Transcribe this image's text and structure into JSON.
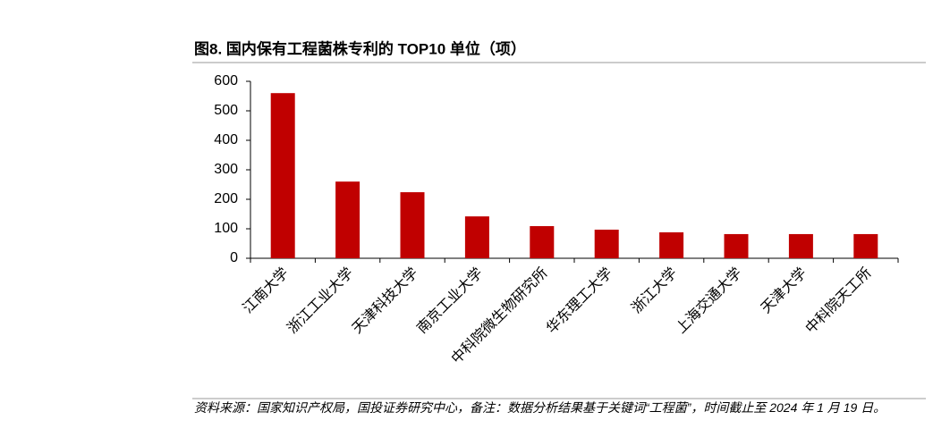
{
  "chart_data": {
    "type": "bar",
    "title": "图8. 国内保有工程菌株专利的 TOP10 单位（项）",
    "categories": [
      "江南大学",
      "浙江工业大学",
      "天津科技大学",
      "南京工业大学",
      "中科院微生物研究所",
      "华东理工大学",
      "浙江大学",
      "上海交通大学",
      "天津大学",
      "中科院天工所"
    ],
    "values": [
      560,
      260,
      224,
      142,
      109,
      97,
      88,
      82,
      82,
      82
    ],
    "color": "#c00000",
    "ylim": [
      0,
      600
    ],
    "yticks": [
      0,
      100,
      200,
      300,
      400,
      500,
      600
    ],
    "grid": false,
    "note": "资料来源：国家知识产权局，国投证券研究中心，备注：数据分析结果基于关键词“工程菌”，时间截止至 2024 年 1 月 19 日。"
  }
}
